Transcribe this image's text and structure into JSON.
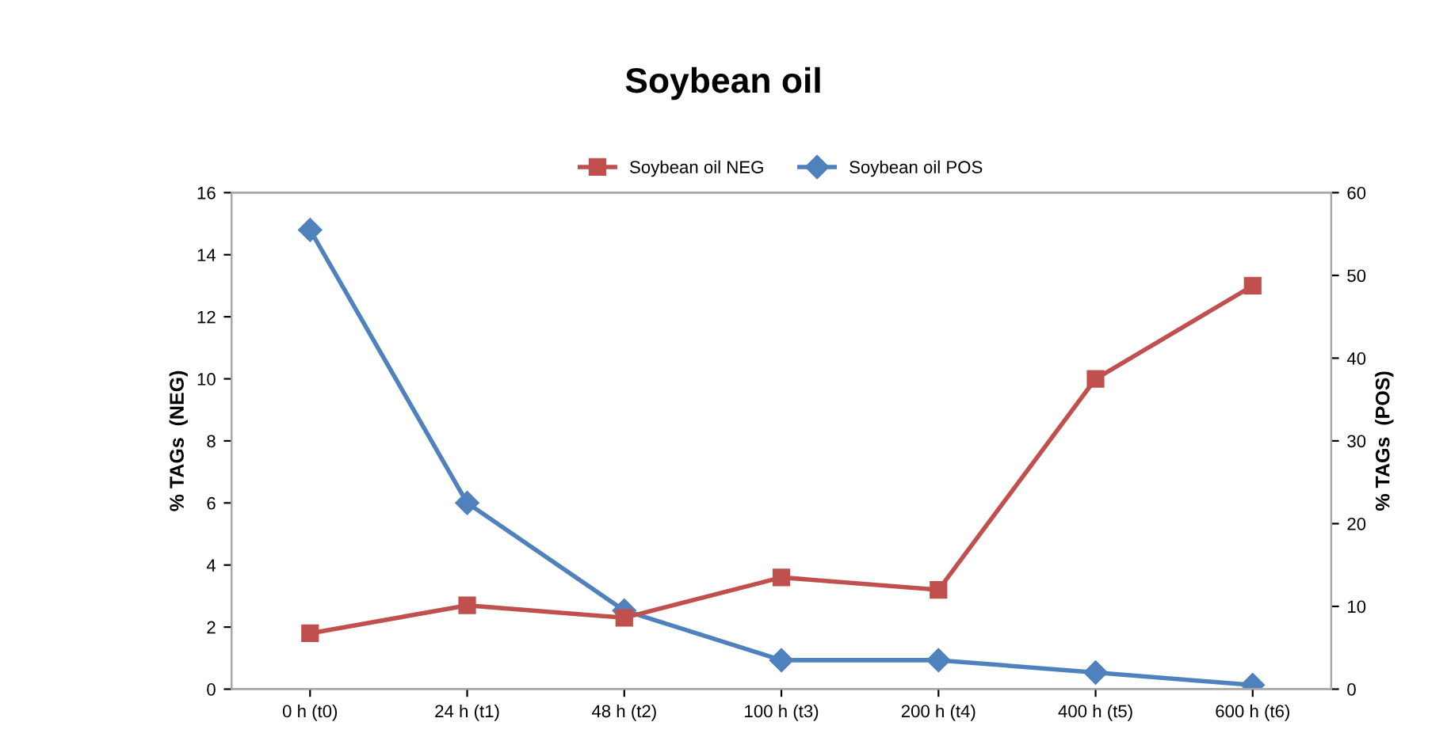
{
  "chart_data": {
    "type": "line",
    "title": "Soybean oil",
    "categories": [
      "0 h (t0)",
      "24 h (t1)",
      "48 h (t2)",
      "100 h (t3)",
      "200 h (t4)",
      "400 h (t5)",
      "600 h (t6)"
    ],
    "ylabel": "% TAGs  (NEG)",
    "y2label": "% TAGs  (POS)",
    "ylim": [
      0,
      16
    ],
    "yticks": [
      0,
      2,
      4,
      6,
      8,
      10,
      12,
      14,
      16
    ],
    "y2lim": [
      0,
      60
    ],
    "y2ticks": [
      0,
      10,
      20,
      30,
      40,
      50,
      60
    ],
    "grid": false,
    "legend": "top",
    "series": [
      {
        "name": "Soybean oil NEG",
        "color": "#c0504d",
        "marker": "square",
        "values": [
          1.8,
          2.7,
          2.3,
          3.6,
          3.2,
          10,
          13
        ]
      },
      {
        "name": "Soybean oil POS",
        "color": "#4f81bd",
        "marker": "diamond",
        "axis": "y2",
        "values": [
          55.5,
          22.5,
          9.5,
          3.5,
          3.5,
          2,
          0.5
        ]
      }
    ]
  }
}
